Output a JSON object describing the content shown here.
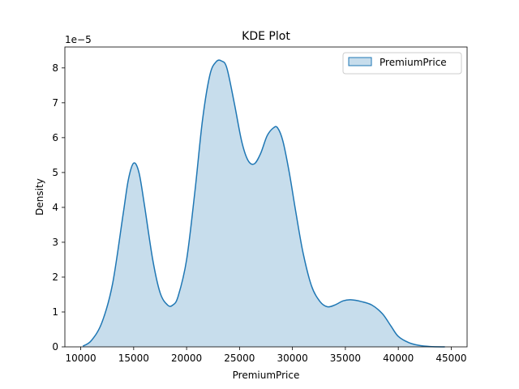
{
  "chart_data": {
    "type": "area",
    "title": "KDE Plot",
    "xlabel": "PremiumPrice",
    "ylabel": "Density",
    "y_offset_label": "1e−5",
    "y_scale_factor": 1e-05,
    "xlim": [
      8500,
      46500
    ],
    "ylim": [
      0,
      8.6
    ],
    "x_ticks": [
      10000,
      15000,
      20000,
      25000,
      30000,
      35000,
      40000,
      45000
    ],
    "x_tick_labels": [
      "10000",
      "15000",
      "20000",
      "25000",
      "30000",
      "35000",
      "40000",
      "45000"
    ],
    "y_ticks": [
      0,
      1,
      2,
      3,
      4,
      5,
      6,
      7,
      8
    ],
    "y_tick_labels": [
      "0",
      "1",
      "2",
      "3",
      "4",
      "5",
      "6",
      "7",
      "8"
    ],
    "grid": false,
    "legend_position": "top-right",
    "series": [
      {
        "name": "PremiumPrice",
        "color": "#1f77b4",
        "fill_color": "#1f77b4",
        "fill_opacity": 0.25,
        "x": [
          10200,
          11000,
          12000,
          13000,
          14000,
          14500,
          15000,
          15500,
          16000,
          16800,
          17500,
          18200,
          18700,
          19200,
          20000,
          20800,
          21500,
          22200,
          22800,
          23300,
          23800,
          24500,
          25200,
          25800,
          26400,
          27000,
          27600,
          28200,
          28600,
          29100,
          29700,
          30300,
          31000,
          31800,
          32600,
          33300,
          34000,
          34800,
          35500,
          36500,
          37500,
          38500,
          39300,
          40000,
          41000,
          42000,
          43000,
          44400
        ],
        "y": [
          0.02,
          0.18,
          0.7,
          1.8,
          3.8,
          4.8,
          5.27,
          5.0,
          4.1,
          2.5,
          1.55,
          1.2,
          1.2,
          1.45,
          2.5,
          4.5,
          6.5,
          7.8,
          8.18,
          8.2,
          8.0,
          7.0,
          5.9,
          5.35,
          5.25,
          5.55,
          6.05,
          6.28,
          6.28,
          5.9,
          5.0,
          3.9,
          2.7,
          1.75,
          1.3,
          1.15,
          1.2,
          1.32,
          1.35,
          1.3,
          1.2,
          0.95,
          0.6,
          0.3,
          0.12,
          0.04,
          0.01,
          0.0
        ]
      }
    ]
  }
}
